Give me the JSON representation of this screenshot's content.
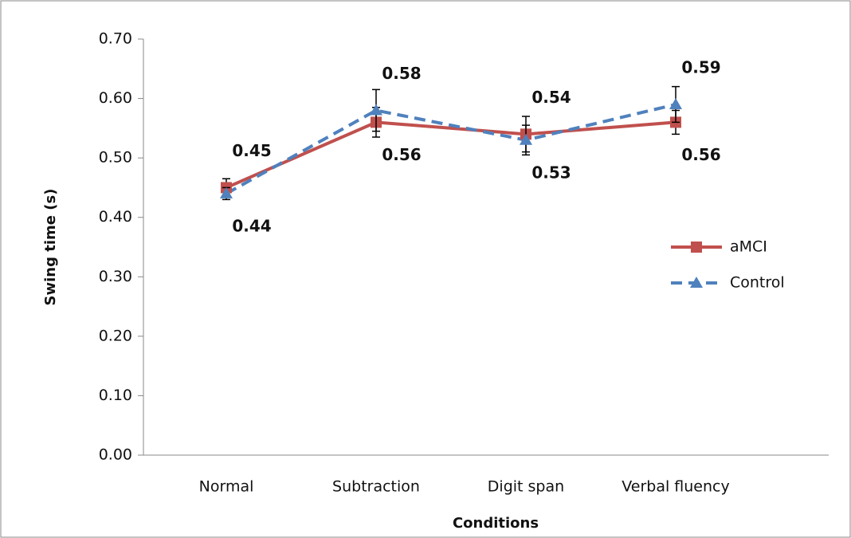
{
  "chart_data": {
    "type": "line",
    "categories": [
      "Normal",
      "Subtraction",
      "Digit span",
      "Verbal fluency"
    ],
    "series": [
      {
        "name": "aMCI",
        "color": "#c0504d",
        "values": [
          0.45,
          0.56,
          0.54,
          0.56
        ],
        "errors": [
          0.015,
          0.025,
          0.03,
          0.02
        ]
      },
      {
        "name": "Control",
        "color": "#4f81bd",
        "values": [
          0.44,
          0.58,
          0.53,
          0.59
        ],
        "errors": [
          0.01,
          0.035,
          0.025,
          0.03
        ]
      }
    ],
    "x_label": "Conditions",
    "y_label": "Swing time (s)",
    "ylim": [
      0,
      0.7
    ],
    "yticks": [
      {
        "value": 0,
        "label": "0.00"
      },
      {
        "value": 0.1,
        "label": "0.10"
      },
      {
        "value": 0.2,
        "label": "0.20"
      },
      {
        "value": 0.3,
        "label": "0.30"
      },
      {
        "value": 0.4,
        "label": "0.40"
      },
      {
        "value": 0.5,
        "label": "0.50"
      },
      {
        "value": 0.6,
        "label": "0.60"
      },
      {
        "value": 0.7,
        "label": "0.70"
      }
    ],
    "legend": "right"
  }
}
